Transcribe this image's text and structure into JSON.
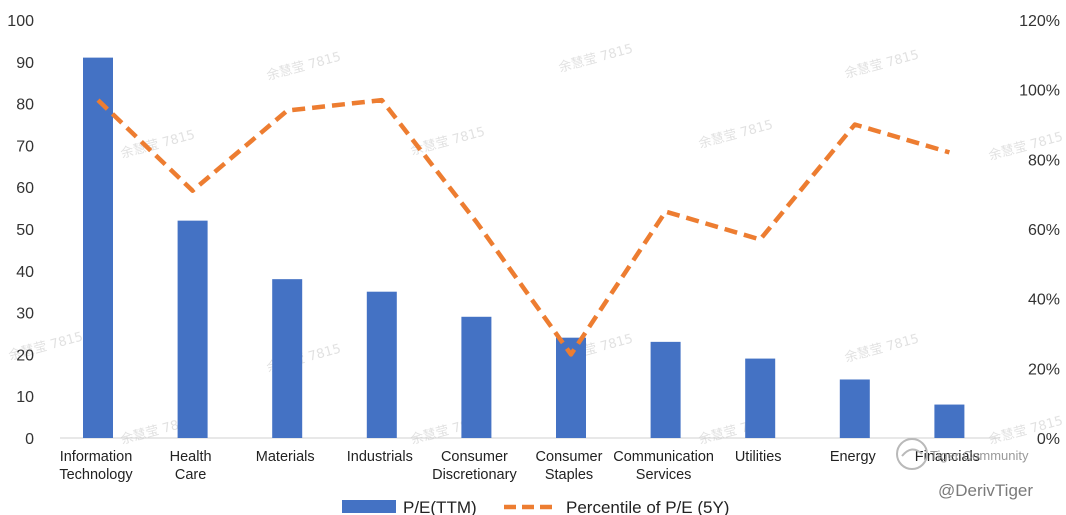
{
  "chart_data": {
    "type": "bar",
    "categories": [
      [
        "Information",
        "Technology"
      ],
      [
        "Health",
        "Care"
      ],
      [
        "Materials"
      ],
      [
        "Industrials"
      ],
      [
        "Consumer",
        "Discretionary"
      ],
      [
        "Consumer",
        "Staples"
      ],
      [
        "Communication",
        "Services"
      ],
      [
        "Utilities"
      ],
      [
        "Energy"
      ],
      [
        "Financials"
      ]
    ],
    "series": [
      {
        "name": "P/E(TTM)",
        "type": "bar",
        "axis": "left",
        "color": "#4472C4",
        "values": [
          91,
          52,
          38,
          35,
          29,
          24,
          23,
          19,
          14,
          8
        ]
      },
      {
        "name": "Percentile of P/E (5Y)",
        "type": "line",
        "style": "dashed",
        "axis": "right",
        "color": "#ED7D31",
        "values": [
          0.97,
          0.71,
          0.94,
          0.97,
          0.62,
          0.24,
          0.65,
          0.57,
          0.9,
          0.82
        ]
      }
    ],
    "y_left": {
      "min": 0,
      "max": 100,
      "step": 10,
      "ticks": [
        "0",
        "10",
        "20",
        "30",
        "40",
        "50",
        "60",
        "70",
        "80",
        "90",
        "100"
      ]
    },
    "y_right": {
      "min": 0,
      "max": 1.2,
      "step": 0.2,
      "ticks": [
        "0%",
        "20%",
        "40%",
        "60%",
        "80%",
        "100%",
        "120%"
      ]
    },
    "grid": false,
    "legend_position": "bottom"
  },
  "watermark": {
    "text": "余慧莹 7815",
    "handle": "@DerivTiger",
    "brand": "Tiger Community"
  }
}
